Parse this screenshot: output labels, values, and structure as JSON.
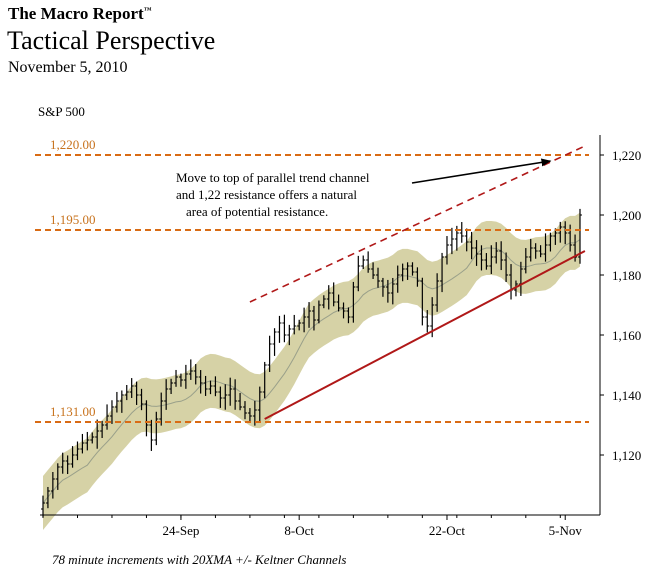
{
  "header": {
    "report_name": "The Macro Report",
    "trademark": "™",
    "title": "Tactical Perspective",
    "date": "November 5, 2010"
  },
  "footnote": "78 minute increments with 20XMA +/- Keltner Channels",
  "colors": {
    "level_line": "#d96b14",
    "level_label": "#c8731e",
    "trend_line": "#b01818",
    "channel_fill": "#d6d2a6",
    "ma_line": "#9aa08a",
    "bars": "#000000"
  },
  "chart_data": {
    "type": "line",
    "series_name": "S&P 500",
    "ylim": [
      1100,
      1225
    ],
    "yticks": [
      1120,
      1140,
      1160,
      1180,
      1200,
      1220
    ],
    "ytick_labels": [
      "1,120",
      "1,140",
      "1,160",
      "1,180",
      "1,200",
      "1,220"
    ],
    "xticks": [
      {
        "label": "24-Sep",
        "index": 28
      },
      {
        "label": "8-Oct",
        "index": 52
      },
      {
        "label": "22-Oct",
        "index": 82
      },
      {
        "label": "5-Nov",
        "index": 106
      }
    ],
    "levels": [
      {
        "value": 1220,
        "label": "1,220.00"
      },
      {
        "value": 1195,
        "label": "1,195.00"
      },
      {
        "value": 1131,
        "label": "1,131.00"
      }
    ],
    "trend_lines": [
      {
        "name": "upper-channel",
        "style": "dashed",
        "from": [
          42,
          1171
        ],
        "to": [
          110,
          1223
        ]
      },
      {
        "name": "lower-trend",
        "style": "solid",
        "from": [
          45,
          1132
        ],
        "to": [
          110,
          1188
        ]
      }
    ],
    "annotation": {
      "lines": [
        "Move to top of parallel trend channel",
        "and 1,22 resistance offers a natural",
        "area of potential resistance."
      ],
      "arrow_to": [
        103,
        1219
      ]
    },
    "keltner_band_width": 9,
    "n_bars": 110,
    "closes": [
      1104,
      1108,
      1112,
      1116,
      1118,
      1117,
      1120,
      1122,
      1124,
      1125,
      1126,
      1128,
      1130,
      1133,
      1136,
      1138,
      1140,
      1141,
      1143,
      1140,
      1137,
      1130,
      1125,
      1132,
      1138,
      1142,
      1144,
      1146,
      1145,
      1147,
      1148,
      1146,
      1144,
      1142,
      1143,
      1141,
      1139,
      1140,
      1142,
      1138,
      1136,
      1134,
      1133,
      1135,
      1141,
      1150,
      1157,
      1161,
      1164,
      1160,
      1162,
      1163,
      1164,
      1166,
      1168,
      1165,
      1170,
      1172,
      1174,
      1171,
      1169,
      1168,
      1166,
      1176,
      1183,
      1185,
      1182,
      1180,
      1178,
      1176,
      1174,
      1177,
      1180,
      1182,
      1183,
      1181,
      1178,
      1166,
      1163,
      1170,
      1178,
      1186,
      1190,
      1192,
      1194,
      1193,
      1191,
      1189,
      1187,
      1185,
      1183,
      1186,
      1188,
      1185,
      1180,
      1175,
      1177,
      1182,
      1186,
      1189,
      1188,
      1187,
      1190,
      1193,
      1194,
      1196,
      1194,
      1190,
      1186,
      1200
    ],
    "price_labels": {
      "open_high_low_close": "OHLC bars"
    }
  }
}
